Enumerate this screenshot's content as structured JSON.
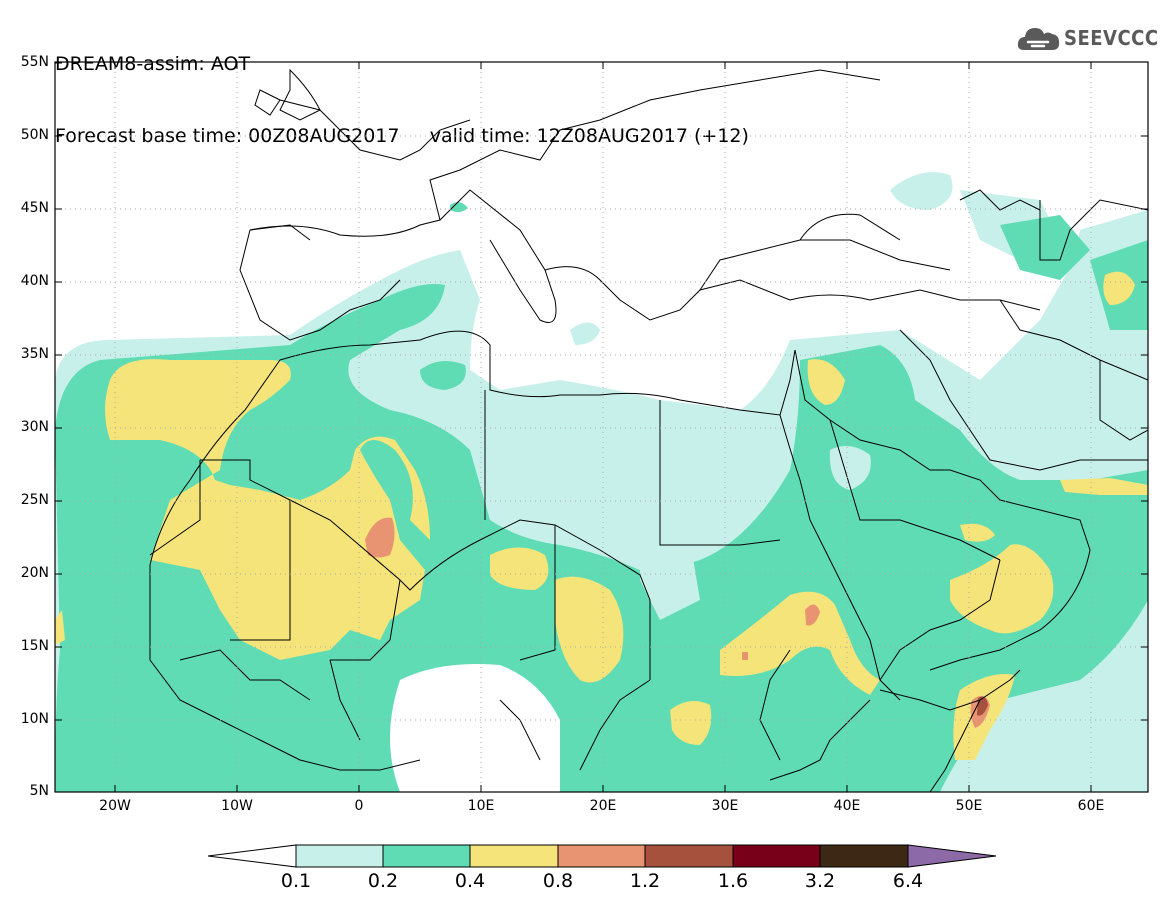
{
  "header": {
    "title": "DREAM8-assim: AOT",
    "base_time_label": "Forecast base time: 00Z08AUG2017",
    "valid_time_label": "valid time: 12Z08AUG2017 (+12)"
  },
  "logo": {
    "text": "SEEVCCC",
    "icon": "cloud-icon"
  },
  "map": {
    "lat_labels": [
      "55N",
      "50N",
      "45N",
      "40N",
      "35N",
      "30N",
      "25N",
      "20N",
      "15N",
      "10N",
      "5N"
    ],
    "lon_labels": [
      "20W",
      "10W",
      "0",
      "10E",
      "20E",
      "30E",
      "40E",
      "50E",
      "60E"
    ],
    "colors": {
      "c01": "#c8f0ea",
      "c02": "#5fdcb4",
      "c04": "#f5e47a",
      "c08": "#e89472",
      "c12": "#a6503e",
      "c16": "#780018",
      "c32": "#3c2814",
      "c64": "#8c6aa8",
      "border": "#000000"
    }
  },
  "colorbar": {
    "labels": [
      "0.1",
      "0.2",
      "0.4",
      "0.8",
      "1.2",
      "1.6",
      "3.2",
      "6.4"
    ]
  }
}
